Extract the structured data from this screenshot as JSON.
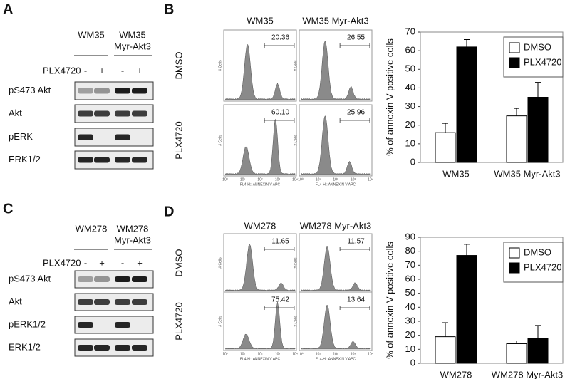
{
  "panel_labels": [
    "A",
    "B",
    "C",
    "D"
  ],
  "blots": [
    {
      "cell_lines": [
        [
          "WM35"
        ],
        [
          "WM35",
          "Myr-Akt3"
        ]
      ],
      "treatment": "PLX4720",
      "lanes": [
        "-",
        "+",
        "-",
        "+"
      ],
      "rows": [
        "pS473 Akt",
        "Akt",
        "pERK",
        "ERK1/2"
      ]
    },
    {
      "cell_lines": [
        [
          "WM278"
        ],
        [
          "WM278",
          "Myr-Akt3"
        ]
      ],
      "treatment": "PLX4720",
      "lanes": [
        "-",
        "+",
        "-",
        "+"
      ],
      "rows": [
        "pS473 Akt",
        "Akt",
        "pERK1/2",
        "ERK1/2"
      ]
    }
  ],
  "flow": [
    {
      "columns": [
        "WM35",
        "WM35 Myr-Akt3"
      ],
      "rows": [
        "DMSO",
        "PLX4720"
      ],
      "gates": [
        [
          "20.36",
          "26.55"
        ],
        [
          "60.10",
          "25.96"
        ]
      ],
      "y_axis_label": "# Cells",
      "x_axis_label": "FL4-H:: ANNEXIN V APC",
      "x_ticks": [
        "10⁰",
        "10¹",
        "10²",
        "10³",
        "10⁴"
      ]
    },
    {
      "columns": [
        "WM278",
        "WM278 Myr-Akt3"
      ],
      "rows": [
        "DMSO",
        "PLX4720"
      ],
      "gates": [
        [
          "11.65",
          "11.57"
        ],
        [
          "75.42",
          "13.64"
        ]
      ],
      "y_axis_label": "# Cells",
      "x_axis_label": "FL4-H:: ANNEXIN V APC",
      "x_ticks": [
        "10⁰",
        "10¹",
        "10²",
        "10³",
        "10⁴"
      ]
    }
  ],
  "chart_data": [
    {
      "type": "bar",
      "y_label": "% of annexin V positive cells",
      "categories": [
        "WM35",
        "WM35 Myr-Akt3"
      ],
      "series": [
        {
          "name": "DMSO",
          "color": "#ffffff",
          "values": [
            16,
            25
          ],
          "errors": [
            5,
            4
          ]
        },
        {
          "name": "PLX4720",
          "color": "#000000",
          "values": [
            62,
            35
          ],
          "errors": [
            4,
            8
          ]
        }
      ],
      "ylim": [
        0,
        70
      ],
      "yticks": [
        0,
        10,
        20,
        30,
        40,
        50,
        60,
        70
      ],
      "legend": "upper right"
    },
    {
      "type": "bar",
      "y_label": "% of annexin V positive cells",
      "categories": [
        "WM278",
        "WM278 Myr-Akt3"
      ],
      "series": [
        {
          "name": "DMSO",
          "color": "#ffffff",
          "values": [
            19,
            14
          ],
          "errors": [
            10,
            2
          ]
        },
        {
          "name": "PLX4720",
          "color": "#000000",
          "values": [
            77,
            18
          ],
          "errors": [
            8,
            9
          ]
        }
      ],
      "ylim": [
        0,
        90
      ],
      "yticks": [
        0,
        10,
        20,
        30,
        40,
        50,
        60,
        70,
        80,
        90
      ],
      "legend": "upper right"
    }
  ]
}
